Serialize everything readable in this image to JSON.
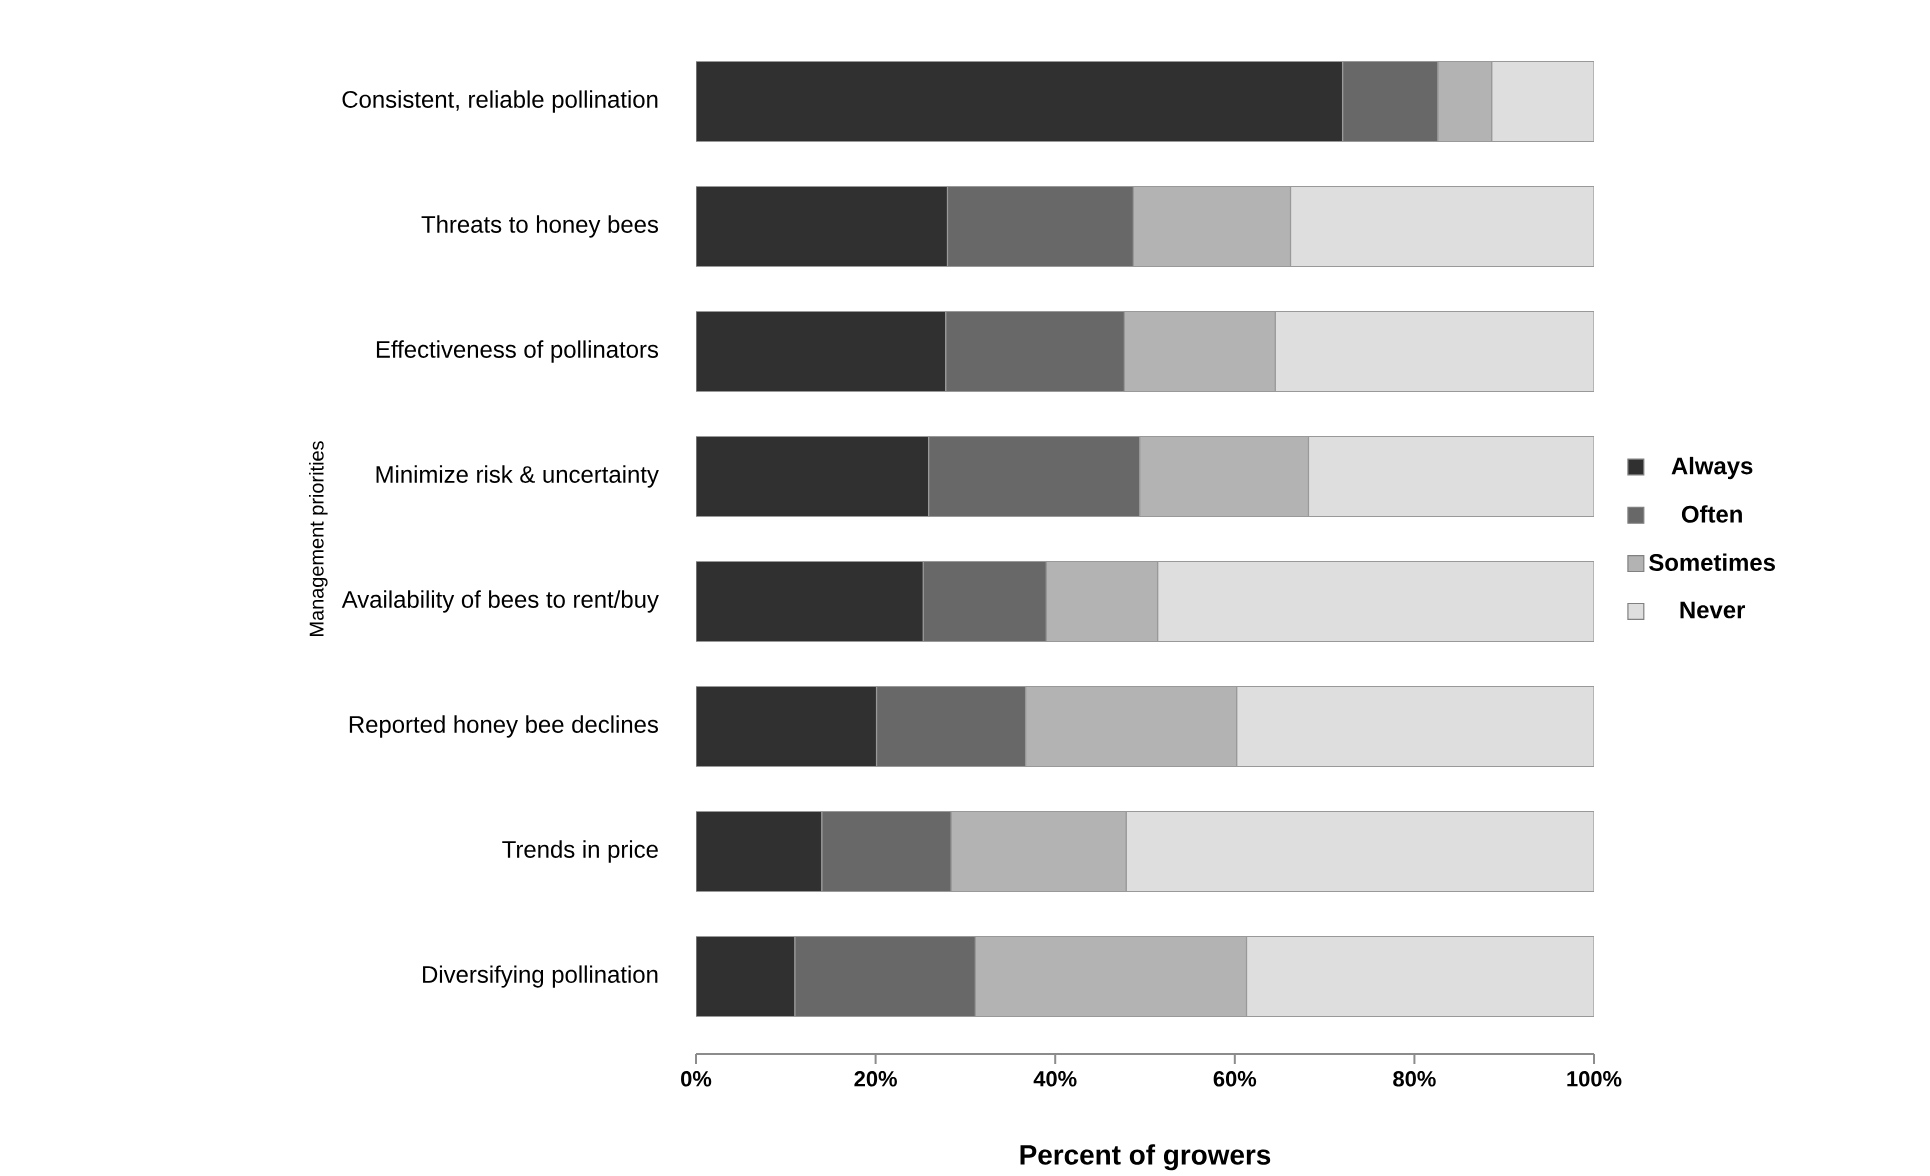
{
  "chart_data": {
    "type": "bar",
    "orientation": "horizontal",
    "stacked": true,
    "xlabel": "Percent of growers",
    "ylabel": "Management priorities",
    "categories": [
      "Consistent, reliable pollination",
      "Threats to honey bees",
      "Effectiveness of pollinators",
      "Minimize risk & uncertainty",
      "Availability of bees to rent/buy",
      "Reported honey bee declines",
      "Trends in price",
      "Diversifying pollination"
    ],
    "series": [
      {
        "name": "Always",
        "color": "#303030",
        "values": [
          72,
          28,
          27.8,
          25.9,
          25.3,
          20.1,
          14,
          11
        ]
      },
      {
        "name": "Often",
        "color": "#686868",
        "values": [
          10.6,
          20.7,
          19.9,
          23.5,
          13.7,
          16.6,
          14.4,
          20.1
        ]
      },
      {
        "name": "Sometimes",
        "color": "#b3b3b3",
        "values": [
          6,
          17.5,
          16.8,
          18.8,
          12.4,
          23.5,
          19.5,
          30.2
        ]
      },
      {
        "name": "Never",
        "color": "#dedede",
        "values": [
          11.4,
          33.8,
          35.5,
          31.8,
          48.6,
          39.8,
          52.1,
          38.7
        ]
      }
    ],
    "xlim": [
      0,
      100
    ],
    "xticks": [
      {
        "value": 0,
        "label": "0%"
      },
      {
        "value": 20,
        "label": "20%"
      },
      {
        "value": 40,
        "label": "40%"
      },
      {
        "value": 60,
        "label": "60%"
      },
      {
        "value": 80,
        "label": "80%"
      },
      {
        "value": 100,
        "label": "100%"
      }
    ],
    "grid": false,
    "legend": "right"
  }
}
